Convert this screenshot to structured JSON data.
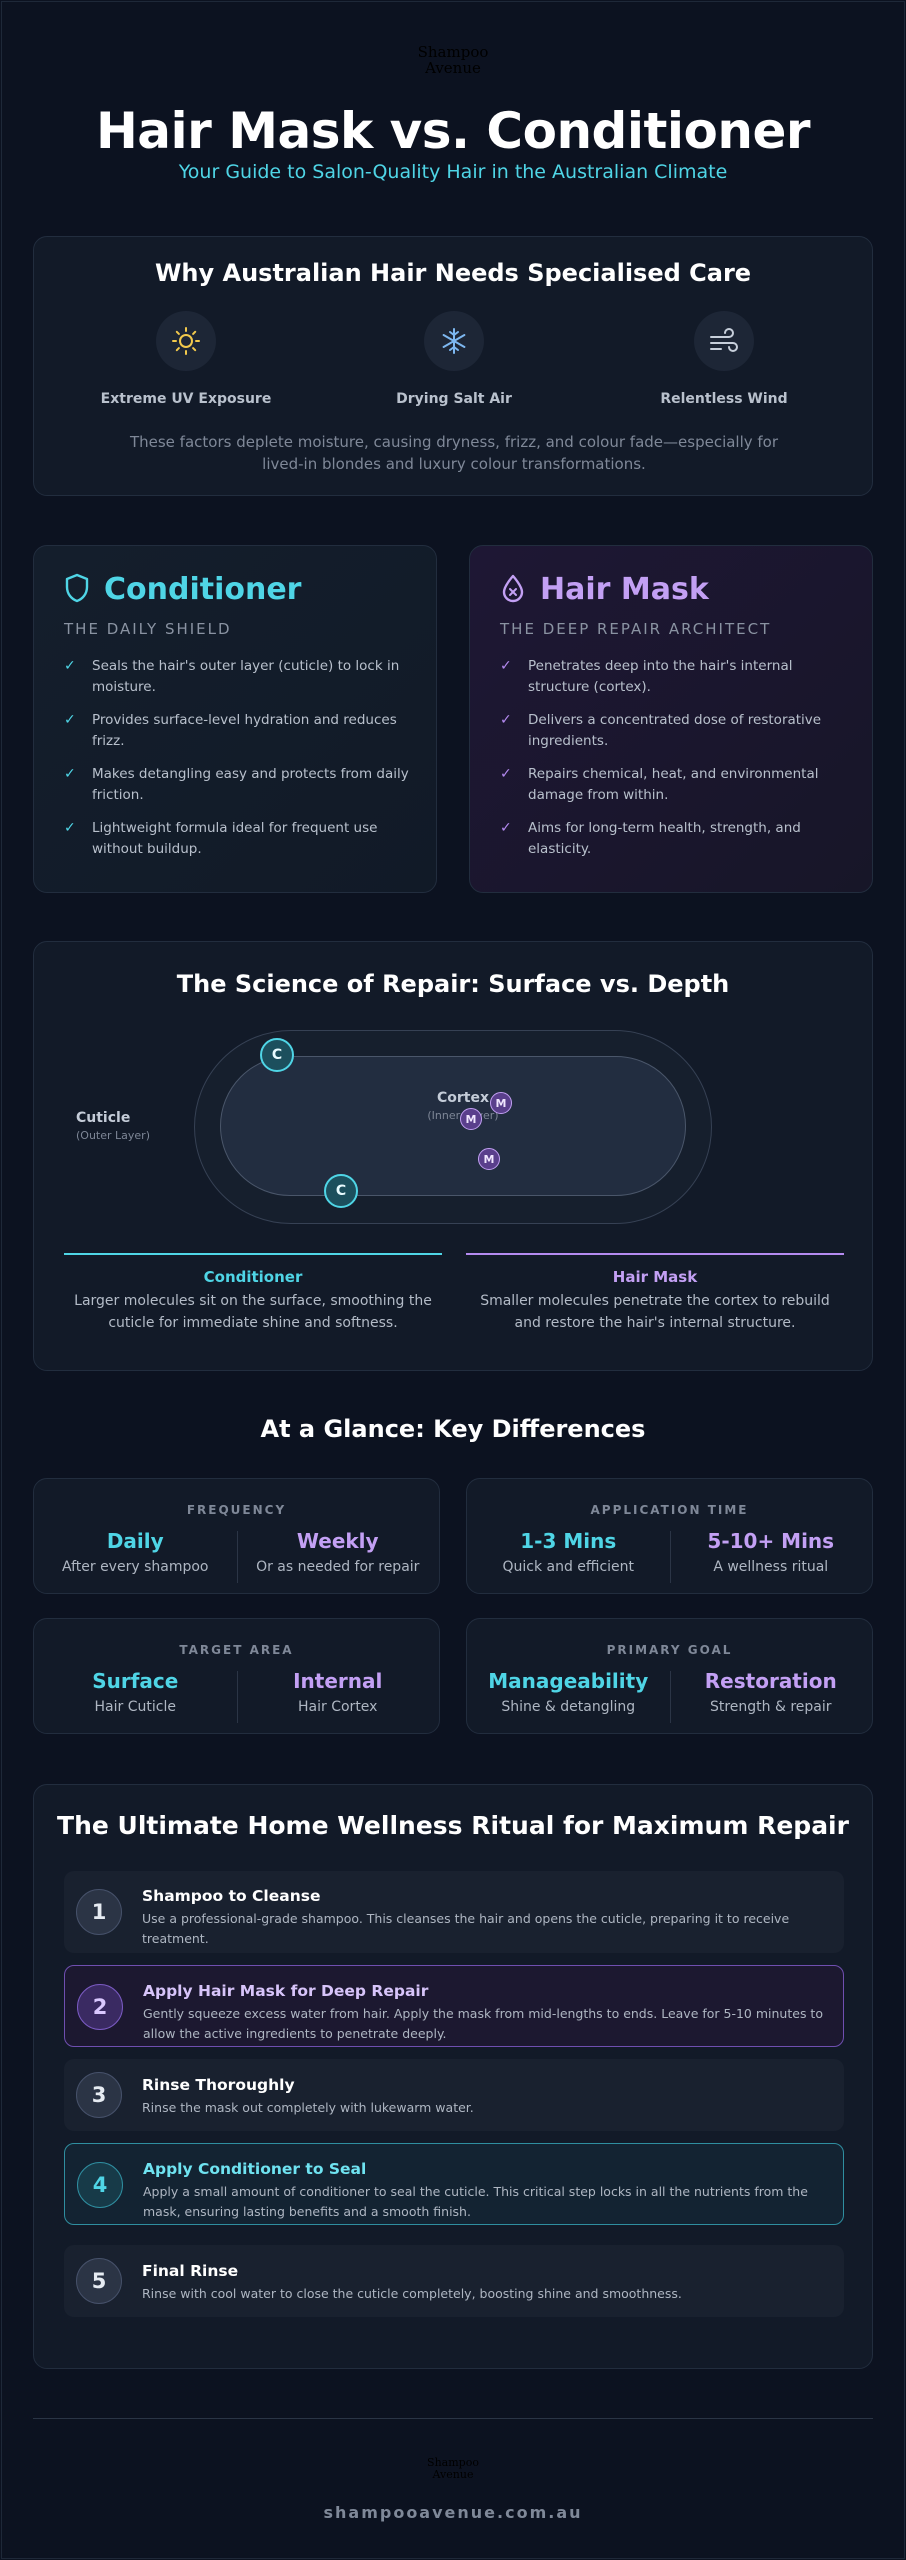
{
  "brand": {
    "logo_line1": "Shampoo",
    "logo_line2": "Avenue",
    "site": "shampooavenue.com.au"
  },
  "header": {
    "title": "Hair Mask vs. Conditioner",
    "subtitle": "Your Guide to Salon-Quality Hair in the Australian Climate"
  },
  "why": {
    "title": "Why Australian Hair Needs Specialised Care",
    "factors": [
      {
        "icon": "sun-icon",
        "label": "Extreme UV Exposure"
      },
      {
        "icon": "snowflake-icon",
        "label": "Drying Salt Air"
      },
      {
        "icon": "wind-icon",
        "label": "Relentless Wind"
      }
    ],
    "description": "These factors deplete moisture, causing dryness, frizz, and colour fade—especially for lived-in blondes and luxury colour transformations."
  },
  "conditioner": {
    "icon": "shield-icon",
    "title": "Conditioner",
    "subtitle": "THE DAILY SHIELD",
    "points": [
      "Seals the hair's outer layer (cuticle) to lock in moisture.",
      "Provides surface-level hydration and reduces frizz.",
      "Makes detangling easy and protects from daily friction.",
      "Lightweight formula ideal for frequent use without buildup."
    ]
  },
  "mask": {
    "icon": "drop-icon",
    "title": "Hair Mask",
    "subtitle": "THE DEEP REPAIR ARCHITECT",
    "points": [
      "Penetrates deep into the hair's internal structure (cortex).",
      "Delivers a concentrated dose of restorative ingredients.",
      "Repairs chemical, heat, and environmental damage from within.",
      "Aims for long-term health, strength, and elasticity."
    ]
  },
  "science": {
    "title": "The Science of Repair: Surface vs. Depth",
    "cuticle_label": "Cuticle",
    "cuticle_sub": "(Outer Layer)",
    "cortex_label": "Cortex",
    "cortex_sub": "(Inner Layer)",
    "c_mark": "C",
    "m_mark": "M",
    "conditioner_head": "Conditioner",
    "conditioner_text": "Larger molecules sit on the surface, smoothing the cuticle for immediate shine and softness.",
    "mask_head": "Hair Mask",
    "mask_text": "Smaller molecules penetrate the cortex to rebuild and restore the hair's internal structure."
  },
  "glance": {
    "title": "At a Glance: Key Differences",
    "cards": [
      {
        "heading": "FREQUENCY",
        "left_value": "Daily",
        "left_sub": "After every shampoo",
        "right_value": "Weekly",
        "right_sub": "Or as needed for repair"
      },
      {
        "heading": "APPLICATION TIME",
        "left_value": "1-3 Mins",
        "left_sub": "Quick and efficient",
        "right_value": "5-10+ Mins",
        "right_sub": "A wellness ritual"
      },
      {
        "heading": "TARGET AREA",
        "left_value": "Surface",
        "left_sub": "Hair Cuticle",
        "right_value": "Internal",
        "right_sub": "Hair Cortex"
      },
      {
        "heading": "PRIMARY GOAL",
        "left_value": "Manageability",
        "left_sub": "Shine & detangling",
        "right_value": "Restoration",
        "right_sub": "Strength & repair"
      }
    ]
  },
  "ritual": {
    "title": "The Ultimate Home Wellness Ritual for Maximum Repair",
    "steps": [
      {
        "num": "1",
        "title": "Shampoo to Cleanse",
        "text": "Use a professional-grade shampoo. This cleanses the hair and opens the cuticle, preparing it to receive treatment."
      },
      {
        "num": "2",
        "title": "Apply Hair Mask for Deep Repair",
        "text": "Gently squeeze excess water from hair. Apply the mask from mid-lengths to ends. Leave for 5-10 minutes to allow the active ingredients to penetrate deeply."
      },
      {
        "num": "3",
        "title": "Rinse Thoroughly",
        "text": "Rinse the mask out completely with lukewarm water."
      },
      {
        "num": "4",
        "title": "Apply Conditioner to Seal",
        "text": "Apply a small amount of conditioner to seal the cuticle. This critical step locks in all the nutrients from the mask, ensuring lasting benefits and a smooth finish."
      },
      {
        "num": "5",
        "title": "Final Rinse",
        "text": "Rinse with cool water to close the cuticle completely, boosting shine and smoothness."
      }
    ]
  },
  "colors": {
    "cyan": "#4fd5e6",
    "purple": "#c3a0f4",
    "background": "#0c1220"
  }
}
